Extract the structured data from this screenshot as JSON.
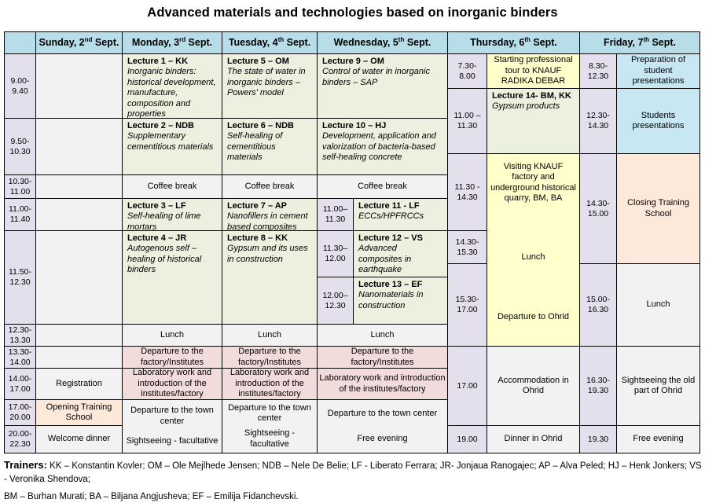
{
  "title": "Advanced materials and technologies based on inorganic binders",
  "days": [
    {
      "pre": "Sunday, 2",
      "sup": "nd",
      "post": " Sept."
    },
    {
      "pre": "Monday, 3",
      "sup": "rd",
      "post": " Sept."
    },
    {
      "pre": "Tuesday, 4",
      "sup": "th",
      "post": " Sept."
    },
    {
      "pre": "Wednesday, 5",
      "sup": "th",
      "post": " Sept."
    },
    {
      "pre": "Thursday, 6",
      "sup": "th",
      "post": " Sept."
    },
    {
      "pre": "Friday, 7",
      "sup": "th",
      "post": " Sept."
    }
  ],
  "times": {
    "main": [
      "9.00-\n9.40",
      "9.50-\n10.30",
      "10.30-\n11.00",
      "11.00-\n11.40",
      "11.50-\n12.30",
      "12.30-\n13.30",
      "13.30-\n14.00",
      "14.00-\n17.00",
      "17.00-\n20.00",
      "20.00-\n22.30"
    ],
    "wednesday": [
      "11.00–\n11.30",
      "11.30–\n12.00",
      "12.00–\n12.30"
    ],
    "thursday": [
      "7.30-\n8.00",
      "11.00 –\n11.30",
      "11.30 -\n14.30",
      "14.30-\n15.30",
      "15.30-\n17.00",
      "17.00",
      "19.00"
    ],
    "friday": [
      "8.30-\n12.30",
      "12.30-\n14.30",
      "14.30-\n15.00",
      "15.00-\n16.30",
      "16.30-\n19.30",
      "19.30"
    ]
  },
  "sunday": {
    "registration": "Registration",
    "opening_school": "Opening Training School",
    "welcome_dinner": "Welcome dinner"
  },
  "monday": {
    "lectures": [
      {
        "title": "Lecture 1 – KK",
        "desc": "Inorganic binders: historical development, manufacture, composition and properties"
      },
      {
        "title": "Lecture 2 – NDB",
        "desc": "Supplementary cementitious materials"
      },
      {
        "title": "Lecture 3 – LF",
        "desc": "Self-healing of lime mortars"
      },
      {
        "title": "Lecture 4 – JR",
        "desc": "Autogenous self – healing of historical binders"
      }
    ],
    "coffee": "Coffee break",
    "lunch": "Lunch",
    "departure_factory": "Departure to the factory/Institutes",
    "lab_work": "Laboratory work and introduction of the institutes/factory",
    "town_center": "Departure to the town center",
    "evening": "Sightseeing - facultative"
  },
  "tuesday": {
    "lectures": [
      {
        "title": "Lecture 5 – OM",
        "desc": "The state of water in inorganic binders – Powers' model"
      },
      {
        "title": "Lecture 6 – NDB",
        "desc": "Self-healing of cementitious materials"
      },
      {
        "title": "Lecture 7 – AP",
        "desc": "Nanofillers in cement based composites"
      },
      {
        "title": "Lecture 8 – KK",
        "desc": "Gypsum and its uses in construction"
      }
    ],
    "coffee": "Coffee break",
    "lunch": "Lunch",
    "departure_factory": "Departure to the factory/Institutes",
    "lab_work": "Laboratory work and introduction of the institutes/factory",
    "town_center": "Departure to the town center",
    "evening": "Sightseeing - facultative"
  },
  "wednesday": {
    "lectures_full": [
      {
        "title": "Lecture 9 –  OM",
        "desc": "Control of water in inorganic binders – SAP"
      },
      {
        "title": "Lecture 10 – HJ",
        "desc": "Development, application and valorization of bacteria-based self-healing concrete"
      }
    ],
    "lectures_sub": [
      {
        "title": "Lecture 11 - LF",
        "desc": "ECCs/HPFRCCs"
      },
      {
        "title": "Lecture 12 – VS",
        "desc": "Advanced composites in earthquake engineering"
      },
      {
        "title": "Lecture 13 –  EF",
        "desc": "Nanomaterials in construction"
      }
    ],
    "coffee": "Coffee break",
    "lunch": "Lunch",
    "departure_factory": "Departure to the factory/Institutes",
    "lab_work": "Laboratory work and introduction of the institutes/factory",
    "town_center": "Departure to the town center",
    "evening": "Free evening"
  },
  "thursday": {
    "tour": "Starting professional tour to KNAUF RADIKA DEBAR",
    "lecture14": {
      "title": "Lecture 14- BM, KK",
      "desc": "Gypsum products"
    },
    "visit": "Visiting KNAUF factory and underground historical quarry, BM, BA",
    "lunch": "Lunch",
    "departure_ohrid": "Departure to Ohrid",
    "accommodation": "Accommodation in Ohrid",
    "dinner": "Dinner in Ohrid"
  },
  "friday": {
    "preparation": "Preparation of student presentations",
    "students": "Students presentations",
    "closing": "Closing Training School",
    "lunch": "Lunch",
    "sightseeing": "Sightseeing the old part of Ohrid",
    "evening": "Free evening"
  },
  "footer": {
    "label": "Trainers:",
    "line1": "KK – Konstantin Kovler; OM – Ole Mejlhede Jensen; NDB – Nele De Belie; LF - Liberato Ferrara; JR- Jonjaua Ranogajec; AP – Alva Peled; HJ – Henk Jonkers; VS - Veronika Shendova;",
    "line2": "BM – Burhan Murati; BA – Biljana Angjusheva;  EF – Emilija Fidanchevski."
  },
  "colors": {
    "header_blue": "#B7DEE8",
    "time_lavender": "#E4DFEC",
    "lecture_green": "#EBF1DE",
    "neutral_gray": "#F2F2F2",
    "departure_pink": "#F2DCDB",
    "school_peach": "#FDE9D9",
    "tour_yellow": "#FFFFCC",
    "friday_blue": "#C7E7F2",
    "border": "#000000"
  }
}
